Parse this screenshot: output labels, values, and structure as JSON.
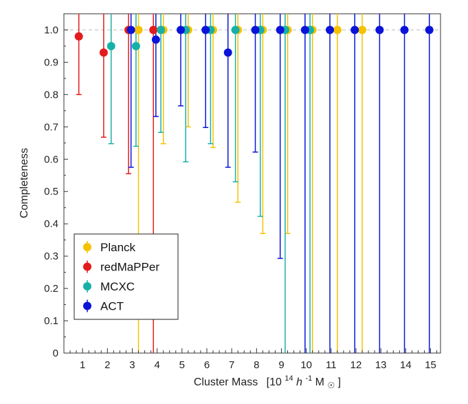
{
  "chart_data": {
    "type": "scatter",
    "title": "",
    "xlabel_main": "Cluster Mass",
    "xlabel_units": "[10",
    "xlabel_exp": "14",
    "xlabel_h": "h",
    "xlabel_hexp": "-1",
    "xlabel_m": "M",
    "xlabel_sun": "☉",
    "xlabel_close": "]",
    "ylabel": "Completeness",
    "xlim": [
      0.25,
      15.4
    ],
    "ylim": [
      0,
      1.05
    ],
    "xticks": [
      "1",
      "2",
      "3",
      "4",
      "5",
      "6",
      "7",
      "8",
      "9",
      "10",
      "11",
      "12",
      "13",
      "14",
      "15"
    ],
    "yticks": [
      "0",
      "0.1",
      "0.2",
      "0.3",
      "0.4",
      "0.5",
      "0.6",
      "0.7",
      "0.8",
      "0.9",
      "1.0"
    ],
    "reference_line": 1.0,
    "legend_position": "lower-left",
    "series": [
      {
        "name": "Planck",
        "color": "#f5c200",
        "points": [
          {
            "x": 3.25,
            "y": 1.0,
            "lo": 0.0,
            "hi": 1.05
          },
          {
            "x": 4.25,
            "y": 1.0,
            "lo": 0.648,
            "hi": 1.05
          },
          {
            "x": 5.25,
            "y": 1.0,
            "lo": 0.7,
            "hi": 1.05
          },
          {
            "x": 6.25,
            "y": 1.0,
            "lo": 0.636,
            "hi": 1.05
          },
          {
            "x": 7.25,
            "y": 1.0,
            "lo": 0.467,
            "hi": 1.05
          },
          {
            "x": 8.25,
            "y": 1.0,
            "lo": 0.37,
            "hi": 1.05
          },
          {
            "x": 9.25,
            "y": 1.0,
            "lo": 0.37,
            "hi": 1.05
          },
          {
            "x": 10.25,
            "y": 1.0,
            "lo": 0.0,
            "hi": 1.05
          },
          {
            "x": 11.25,
            "y": 1.0,
            "lo": 0.0,
            "hi": 1.05
          },
          {
            "x": 12.25,
            "y": 1.0,
            "lo": 0.0,
            "hi": 1.05
          }
        ]
      },
      {
        "name": "redMaPPer",
        "color": "#e41a1c",
        "points": [
          {
            "x": 0.85,
            "y": 0.98,
            "lo": 0.8,
            "hi": 1.05
          },
          {
            "x": 1.85,
            "y": 0.93,
            "lo": 0.668,
            "hi": 1.05
          },
          {
            "x": 2.85,
            "y": 1.0,
            "lo": 0.555,
            "hi": 1.05
          },
          {
            "x": 3.85,
            "y": 1.0,
            "lo": 0.0,
            "hi": 1.05
          }
        ]
      },
      {
        "name": "MCXC",
        "color": "#17b0a8",
        "points": [
          {
            "x": 2.15,
            "y": 0.95,
            "lo": 0.648,
            "hi": 1.05
          },
          {
            "x": 3.15,
            "y": 0.95,
            "lo": 0.64,
            "hi": 1.05
          },
          {
            "x": 4.15,
            "y": 1.0,
            "lo": 0.683,
            "hi": 1.05
          },
          {
            "x": 5.15,
            "y": 1.0,
            "lo": 0.592,
            "hi": 1.05
          },
          {
            "x": 6.15,
            "y": 1.0,
            "lo": 0.648,
            "hi": 1.05
          },
          {
            "x": 7.15,
            "y": 1.0,
            "lo": 0.53,
            "hi": 1.05
          },
          {
            "x": 8.15,
            "y": 1.0,
            "lo": 0.423,
            "hi": 1.05
          },
          {
            "x": 9.15,
            "y": 1.0,
            "lo": 0.0,
            "hi": 1.05
          },
          {
            "x": 10.15,
            "y": 1.0,
            "lo": 0.0,
            "hi": 1.05
          }
        ]
      },
      {
        "name": "ACT",
        "color": "#0a14d8",
        "points": [
          {
            "x": 2.95,
            "y": 1.0,
            "lo": 0.575,
            "hi": 1.05
          },
          {
            "x": 3.95,
            "y": 0.97,
            "lo": 0.732,
            "hi": 1.05
          },
          {
            "x": 4.95,
            "y": 1.0,
            "lo": 0.765,
            "hi": 1.05
          },
          {
            "x": 5.95,
            "y": 1.0,
            "lo": 0.698,
            "hi": 1.05
          },
          {
            "x": 6.85,
            "y": 0.93,
            "lo": 0.575,
            "hi": 1.05
          },
          {
            "x": 7.95,
            "y": 1.0,
            "lo": 0.622,
            "hi": 1.05
          },
          {
            "x": 8.95,
            "y": 1.0,
            "lo": 0.293,
            "hi": 1.05
          },
          {
            "x": 9.95,
            "y": 1.0,
            "lo": 0.0,
            "hi": 1.05
          },
          {
            "x": 10.95,
            "y": 1.0,
            "lo": 0.0,
            "hi": 1.05
          },
          {
            "x": 11.95,
            "y": 1.0,
            "lo": 0.0,
            "hi": 1.05
          },
          {
            "x": 12.95,
            "y": 1.0,
            "lo": 0.0,
            "hi": 1.05
          },
          {
            "x": 13.95,
            "y": 1.0,
            "lo": 0.0,
            "hi": 1.05
          },
          {
            "x": 14.95,
            "y": 1.0,
            "lo": 0.0,
            "hi": 1.05
          }
        ]
      }
    ]
  }
}
